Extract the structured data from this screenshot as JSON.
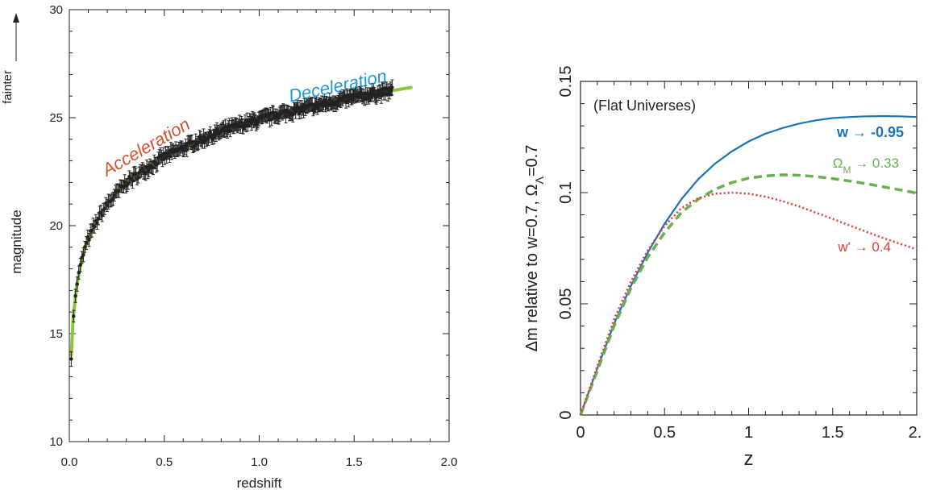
{
  "chart_data": [
    {
      "type": "scatter",
      "xlabel": "redshift",
      "ylabel": "magnitude",
      "arrow_label": "fainter",
      "xlim": [
        0.0,
        2.0
      ],
      "ylim": [
        10,
        30
      ],
      "xticks": [
        0.0,
        0.5,
        1.0,
        1.5,
        2.0
      ],
      "xtick_labels": [
        "0.0",
        "0.5",
        "1.0",
        "1.5",
        "2.0"
      ],
      "yticks": [
        10,
        15,
        20,
        25,
        30
      ],
      "ytick_labels": [
        "10",
        "15",
        "20",
        "25",
        "30"
      ],
      "grid": false,
      "annotations": [
        {
          "text": "Acceleration",
          "x": 0.42,
          "y": 23.4,
          "color": "#d0532d"
        },
        {
          "text": "Deceleration",
          "x": 1.42,
          "y": 26.2,
          "color": "#1e98d3"
        }
      ],
      "model_curve": {
        "color": "#8cc63f",
        "x": [
          0.01,
          0.02,
          0.04,
          0.06,
          0.08,
          0.1,
          0.15,
          0.2,
          0.3,
          0.4,
          0.5,
          0.6,
          0.7,
          0.8,
          0.9,
          1.0,
          1.1,
          1.2,
          1.3,
          1.4,
          1.5,
          1.6,
          1.7,
          1.8
        ],
        "y": [
          14.0,
          15.7,
          17.3,
          18.2,
          18.9,
          19.4,
          20.3,
          21.0,
          22.0,
          22.6,
          23.2,
          23.6,
          24.0,
          24.35,
          24.65,
          24.9,
          25.15,
          25.35,
          25.55,
          25.75,
          25.95,
          26.1,
          26.25,
          26.4
        ]
      },
      "supernovae": {
        "color": "#222222",
        "x_range": [
          0.01,
          1.7
        ],
        "count": 330,
        "error": 0.25
      }
    },
    {
      "type": "line",
      "xlabel": "z",
      "ylabel": "Δm relative to w=0.7, Ω",
      "ylabel_sub": "Λ",
      "ylabel_tail": "=0.7",
      "xlim": [
        0,
        2
      ],
      "ylim": [
        0,
        0.15
      ],
      "xticks": [
        0,
        0.5,
        1,
        1.5,
        2
      ],
      "xtick_labels": [
        "0",
        "0.5",
        "1",
        "1.5",
        "2."
      ],
      "yticks": [
        0,
        0.05,
        0.1,
        0.15
      ],
      "ytick_labels": [
        "0",
        "0.05",
        "0.1",
        "0.15"
      ],
      "grid": false,
      "inset_label": "(Flat Universes)",
      "series": [
        {
          "name": "w → -0.95",
          "color": "#1a73b6",
          "style": "solid",
          "x": [
            0,
            0.1,
            0.2,
            0.3,
            0.4,
            0.5,
            0.6,
            0.7,
            0.8,
            0.9,
            1.0,
            1.1,
            1.2,
            1.3,
            1.4,
            1.5,
            1.6,
            1.7,
            1.8,
            1.9,
            2.0
          ],
          "values": [
            0,
            0.021,
            0.041,
            0.058,
            0.073,
            0.086,
            0.097,
            0.106,
            0.113,
            0.1185,
            0.123,
            0.1265,
            0.129,
            0.131,
            0.1325,
            0.1335,
            0.134,
            0.1343,
            0.1344,
            0.1343,
            0.134
          ]
        },
        {
          "name": "Ω",
          "name_sub": "M",
          "name_tail": " → 0.33",
          "color": "#6ab04c",
          "style": "dashed",
          "x": [
            0,
            0.1,
            0.2,
            0.3,
            0.4,
            0.5,
            0.6,
            0.7,
            0.8,
            0.9,
            1.0,
            1.1,
            1.2,
            1.3,
            1.4,
            1.5,
            1.6,
            1.7,
            1.8,
            1.9,
            2.0
          ],
          "values": [
            0,
            0.02,
            0.04,
            0.057,
            0.071,
            0.082,
            0.091,
            0.097,
            0.1015,
            0.1045,
            0.1065,
            0.1075,
            0.108,
            0.1078,
            0.1072,
            0.1063,
            0.1052,
            0.104,
            0.1026,
            0.1012,
            0.0998
          ]
        },
        {
          "name": "w' → 0.4",
          "color": "#e03c3c",
          "style": "dotted",
          "x": [
            0,
            0.1,
            0.2,
            0.3,
            0.4,
            0.5,
            0.6,
            0.7,
            0.8,
            0.9,
            1.0,
            1.1,
            1.2,
            1.3,
            1.4,
            1.5,
            1.6,
            1.7,
            1.8,
            1.9,
            2.0
          ],
          "values": [
            0,
            0.022,
            0.043,
            0.06,
            0.074,
            0.085,
            0.093,
            0.0975,
            0.0995,
            0.1,
            0.0995,
            0.0982,
            0.0962,
            0.0938,
            0.091,
            0.0882,
            0.0853,
            0.0824,
            0.0796,
            0.077,
            0.0745
          ]
        }
      ]
    }
  ]
}
